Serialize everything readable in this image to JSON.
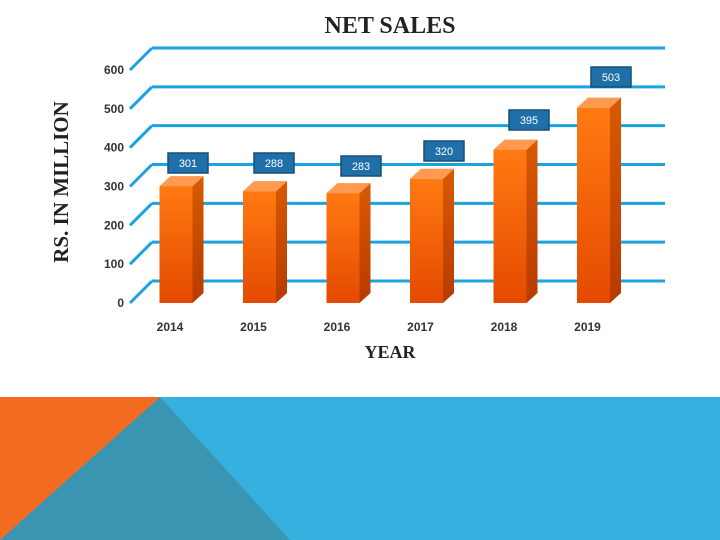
{
  "chart_data": {
    "type": "bar",
    "title": "NET SALES",
    "xlabel": "YEAR",
    "ylabel": "RS. IN MILLION",
    "categories": [
      "2014",
      "2015",
      "2016",
      "2017",
      "2018",
      "2019"
    ],
    "values": [
      301,
      288,
      283,
      320,
      395,
      503
    ],
    "ylim": [
      0,
      600
    ],
    "yticks": [
      "0",
      "100",
      "200",
      "300",
      "400",
      "500",
      "600"
    ],
    "grid": true,
    "legend": "none"
  },
  "colors": {
    "bar": "#ff6a00",
    "gridline": "#1aa3e0",
    "label_box": "#1f6fa8",
    "accent_blue": "#35b0df",
    "accent_orange": "#f26b21",
    "accent_dark": "#3a95b3"
  }
}
